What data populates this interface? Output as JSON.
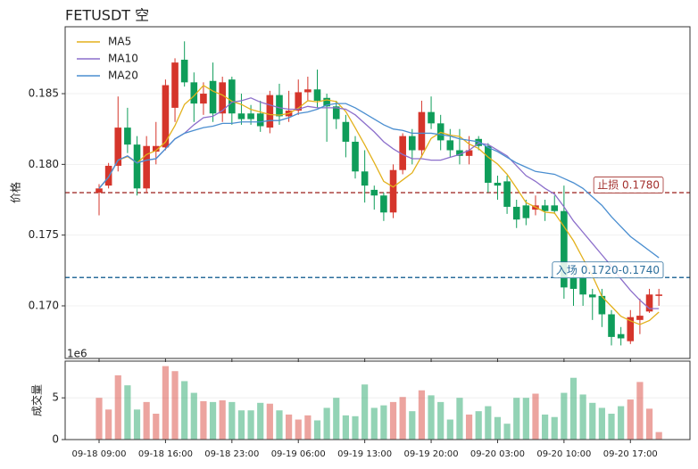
{
  "chart_data": {
    "type": "candlestick",
    "title": "FETUSDT 空",
    "ylabel": "价格",
    "up_color": "#d5352b",
    "down_color": "#0f9d5a",
    "grid": true,
    "legend": "upper left",
    "ylim": [
      0.16628,
      0.18973
    ],
    "yticks": [
      {
        "value": 0.17,
        "label": "0.170"
      },
      0.175,
      {
        "value": 0.18,
        "label": "0.180"
      },
      0.185
    ],
    "categories": [
      "09-18 09:00",
      null,
      null,
      null,
      null,
      null,
      null,
      "09-18 16:00",
      null,
      null,
      null,
      null,
      null,
      null,
      "09-18 23:00",
      null,
      null,
      null,
      null,
      null,
      null,
      "09-19 06:00",
      null,
      null,
      null,
      null,
      null,
      null,
      "09-19 13:00",
      null,
      null,
      null,
      null,
      null,
      null,
      "09-19 20:00",
      null,
      null,
      null,
      null,
      null,
      null,
      "09-20 03:00",
      null,
      null,
      null,
      null,
      null,
      null,
      "09-20 10:00",
      null,
      null,
      null,
      null,
      null,
      null,
      "09-20 17:00",
      null,
      null,
      null
    ],
    "open": [
      0.178,
      0.1785,
      0.1799,
      0.1826,
      0.1814,
      0.1783,
      0.1809,
      0.1812,
      0.184,
      0.1874,
      0.1858,
      0.1843,
      0.1859,
      0.1836,
      0.186,
      0.1836,
      0.1836,
      0.1836,
      0.1826,
      0.1849,
      0.1834,
      0.1838,
      0.1851,
      0.1853,
      0.1847,
      0.1841,
      0.183,
      0.1816,
      0.1795,
      0.1782,
      0.1778,
      0.1766,
      0.1796,
      0.182,
      0.181,
      0.1837,
      0.1829,
      0.1817,
      0.181,
      0.1806,
      0.1818,
      0.1813,
      0.1787,
      0.1788,
      0.177,
      0.1771,
      0.1768,
      0.1771,
      0.1771,
      0.1767,
      0.172,
      0.172,
      0.1708,
      0.1707,
      0.1694,
      0.168,
      0.1675,
      0.169,
      0.1696,
      0.1707
    ],
    "high": [
      0.1786,
      0.1801,
      0.1848,
      0.184,
      0.182,
      0.182,
      0.183,
      0.186,
      0.1875,
      0.1887,
      0.1865,
      0.1858,
      0.1872,
      0.1862,
      0.1862,
      0.185,
      0.1842,
      0.1845,
      0.1852,
      0.1857,
      0.1852,
      0.186,
      0.1862,
      0.1867,
      0.185,
      0.1845,
      0.1835,
      0.182,
      0.181,
      0.1785,
      0.178,
      0.18,
      0.1822,
      0.1825,
      0.1845,
      0.1848,
      0.1835,
      0.1825,
      0.1825,
      0.182,
      0.182,
      0.1815,
      0.1792,
      0.1792,
      0.1775,
      0.1775,
      0.1778,
      0.1775,
      0.1778,
      0.1785,
      0.1725,
      0.1728,
      0.1712,
      0.1712,
      0.1697,
      0.1685,
      0.1697,
      0.1705,
      0.1712,
      0.1712
    ],
    "low": [
      0.1764,
      0.1783,
      0.1795,
      0.1808,
      0.1778,
      0.178,
      0.18,
      0.181,
      0.183,
      0.1855,
      0.183,
      0.1835,
      0.183,
      0.183,
      0.1828,
      0.1828,
      0.1828,
      0.1823,
      0.1822,
      0.1828,
      0.183,
      0.1835,
      0.1845,
      0.184,
      0.1816,
      0.1825,
      0.1805,
      0.179,
      0.1773,
      0.1768,
      0.176,
      0.1762,
      0.1793,
      0.18,
      0.1805,
      0.1825,
      0.181,
      0.1805,
      0.18,
      0.18,
      0.181,
      0.178,
      0.1775,
      0.1765,
      0.1755,
      0.1757,
      0.1764,
      0.176,
      0.1765,
      0.1705,
      0.17,
      0.17,
      0.169,
      0.1685,
      0.1672,
      0.1672,
      0.1673,
      0.168,
      0.1695,
      0.17
    ],
    "close": [
      0.1783,
      0.1799,
      0.1826,
      0.1814,
      0.1783,
      0.1813,
      0.1813,
      0.1856,
      0.1872,
      0.1858,
      0.1843,
      0.185,
      0.1836,
      0.1858,
      0.1836,
      0.1832,
      0.1832,
      0.1827,
      0.1849,
      0.1834,
      0.1838,
      0.1851,
      0.1853,
      0.1845,
      0.1841,
      0.1832,
      0.1816,
      0.1795,
      0.1785,
      0.1778,
      0.1766,
      0.1796,
      0.182,
      0.181,
      0.1837,
      0.1829,
      0.1817,
      0.181,
      0.1806,
      0.181,
      0.1813,
      0.1787,
      0.1785,
      0.177,
      0.1761,
      0.1762,
      0.1771,
      0.1767,
      0.1767,
      0.1713,
      0.1712,
      0.1708,
      0.1706,
      0.1694,
      0.1678,
      0.1677,
      0.1692,
      0.1693,
      0.1708,
      0.1708
    ],
    "series": [
      {
        "name": "MA5",
        "color": "#e3b11c",
        "values": [
          0.1783,
          0.1791,
          0.1803,
          0.18055,
          0.1801,
          0.1807,
          0.18098,
          0.18158,
          0.18274,
          0.18424,
          0.18484,
          0.18558,
          0.18518,
          0.1849,
          0.18446,
          0.18424,
          0.18388,
          0.1837,
          0.18352,
          0.18348,
          0.1836,
          0.18398,
          0.1845,
          0.18442,
          0.18456,
          0.18444,
          0.18374,
          0.18258,
          0.18138,
          0.18012,
          0.1788,
          0.1784,
          0.1789,
          0.1794,
          0.18058,
          0.18184,
          0.18226,
          0.18206,
          0.18198,
          0.18144,
          0.18112,
          0.18052,
          0.18002,
          0.1793,
          0.17832,
          0.1773,
          0.17698,
          0.17662,
          0.17656,
          0.1756,
          0.1746,
          0.17334,
          0.17212,
          0.17066,
          0.16996,
          0.16926,
          0.16894,
          0.16868,
          0.16896,
          0.16956
        ]
      },
      {
        "name": "MA10",
        "color": "#8c6fcb",
        "values": [
          0.1783,
          0.1791,
          0.1803,
          0.1806,
          0.1801,
          0.1803,
          0.1804,
          0.1811,
          0.1818,
          0.1822,
          0.1828,
          0.1833,
          0.1834,
          0.1838,
          0.1844,
          0.1845,
          0.1847,
          0.1844,
          0.1842,
          0.184,
          0.1839,
          0.1839,
          0.1841,
          0.184,
          0.184,
          0.184,
          0.1839,
          0.1835,
          0.1829,
          0.1823,
          0.1816,
          0.1811,
          0.1807,
          0.1804,
          0.1804,
          0.1803,
          0.1803,
          0.1805,
          0.1807,
          0.181,
          0.1815,
          0.1814,
          0.181,
          0.1806,
          0.1799,
          0.1792,
          0.1788,
          0.1783,
          0.1779,
          0.177,
          0.176,
          0.1752,
          0.1744,
          0.1736,
          0.1728,
          0.1719,
          0.1711,
          0.1704,
          0.1698,
          0.1698
        ]
      },
      {
        "name": "MA20",
        "color": "#4a8ed0",
        "values": [
          0.1783,
          0.1791,
          0.1803,
          0.1806,
          0.1801,
          0.1803,
          0.1804,
          0.1811,
          0.1818,
          0.1822,
          0.1824,
          0.1826,
          0.1827,
          0.1829,
          0.1829,
          0.183,
          0.183,
          0.183,
          0.1831,
          0.1831,
          0.1833,
          0.1836,
          0.1837,
          0.1839,
          0.1842,
          0.1843,
          0.1843,
          0.184,
          0.1836,
          0.1832,
          0.1828,
          0.1825,
          0.1824,
          0.1822,
          0.1822,
          0.1822,
          0.1821,
          0.182,
          0.1818,
          0.1817,
          0.1816,
          0.1812,
          0.1809,
          0.1805,
          0.1801,
          0.1798,
          0.1795,
          0.1794,
          0.1793,
          0.179,
          0.1787,
          0.1783,
          0.1777,
          0.1771,
          0.1763,
          0.1756,
          0.1749,
          0.1744,
          0.1739,
          0.1734
        ]
      }
    ],
    "hlines": [
      {
        "value": 0.178,
        "color": "#a3302d",
        "label": "止损 0.1780"
      },
      {
        "value": 0.172,
        "color": "#2b6e9c",
        "label": "入场 0.1720-0.1740"
      }
    ],
    "volume": {
      "ylabel": "成交量",
      "offset_label": "1e6",
      "ylim": [
        0,
        9.4
      ],
      "yticks": [
        0,
        5
      ],
      "values": [
        5.0,
        3.6,
        7.7,
        6.5,
        3.6,
        4.5,
        3.1,
        8.8,
        8.2,
        7.0,
        5.6,
        4.6,
        4.5,
        4.7,
        4.5,
        3.5,
        3.5,
        4.4,
        4.3,
        3.5,
        3.0,
        2.4,
        2.9,
        2.3,
        3.8,
        5.0,
        2.9,
        2.8,
        6.6,
        3.8,
        4.1,
        4.5,
        5.1,
        3.4,
        5.9,
        5.3,
        4.5,
        2.4,
        5.0,
        3.0,
        3.4,
        4.0,
        2.7,
        1.9,
        5.0,
        5.0,
        5.5,
        3.0,
        2.7,
        5.6,
        7.4,
        5.4,
        4.4,
        3.8,
        3.1,
        4.0,
        4.8,
        6.9,
        3.7,
        0.9
      ]
    }
  }
}
